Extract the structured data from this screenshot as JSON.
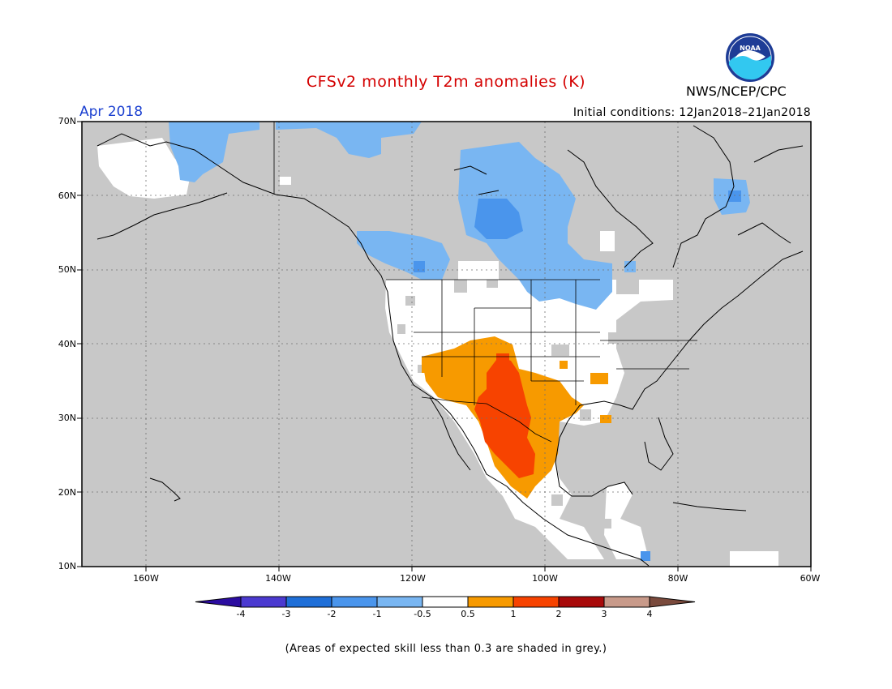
{
  "title": "CFSv2 monthly T2m anomalies (K)",
  "agency": "NWS/NCEP/CPC",
  "logo_text": "NOAA",
  "forecast_month": "Apr 2018",
  "initial_conditions": "Initial conditions: 12Jan2018–21Jan2018",
  "footnote": "(Areas of expected skill less than 0.3 are shaded in grey.)",
  "map": {
    "lon_range": [
      -171,
      -60
    ],
    "lat_range": [
      10,
      70
    ],
    "lat_ticks": [
      "70N",
      "60N",
      "50N",
      "40N",
      "30N",
      "20N",
      "10N"
    ],
    "lon_ticks": [
      "160W",
      "140W",
      "120W",
      "100W",
      "80W",
      "60W"
    ],
    "grid": true,
    "background_color": "#c8c8c8"
  },
  "colorbar": {
    "labels": [
      "-4",
      "-3",
      "-2",
      "-1",
      "-0.5",
      "0.5",
      "1",
      "2",
      "3",
      "4"
    ],
    "colors": [
      "#2b0ca0",
      "#4b3ad0",
      "#1f6fd8",
      "#4a95ec",
      "#79b6f2",
      "#ffffff",
      "#f79a00",
      "#f74300",
      "#a80a0a",
      "#c89a8a",
      "#7a4a3c"
    ]
  }
}
